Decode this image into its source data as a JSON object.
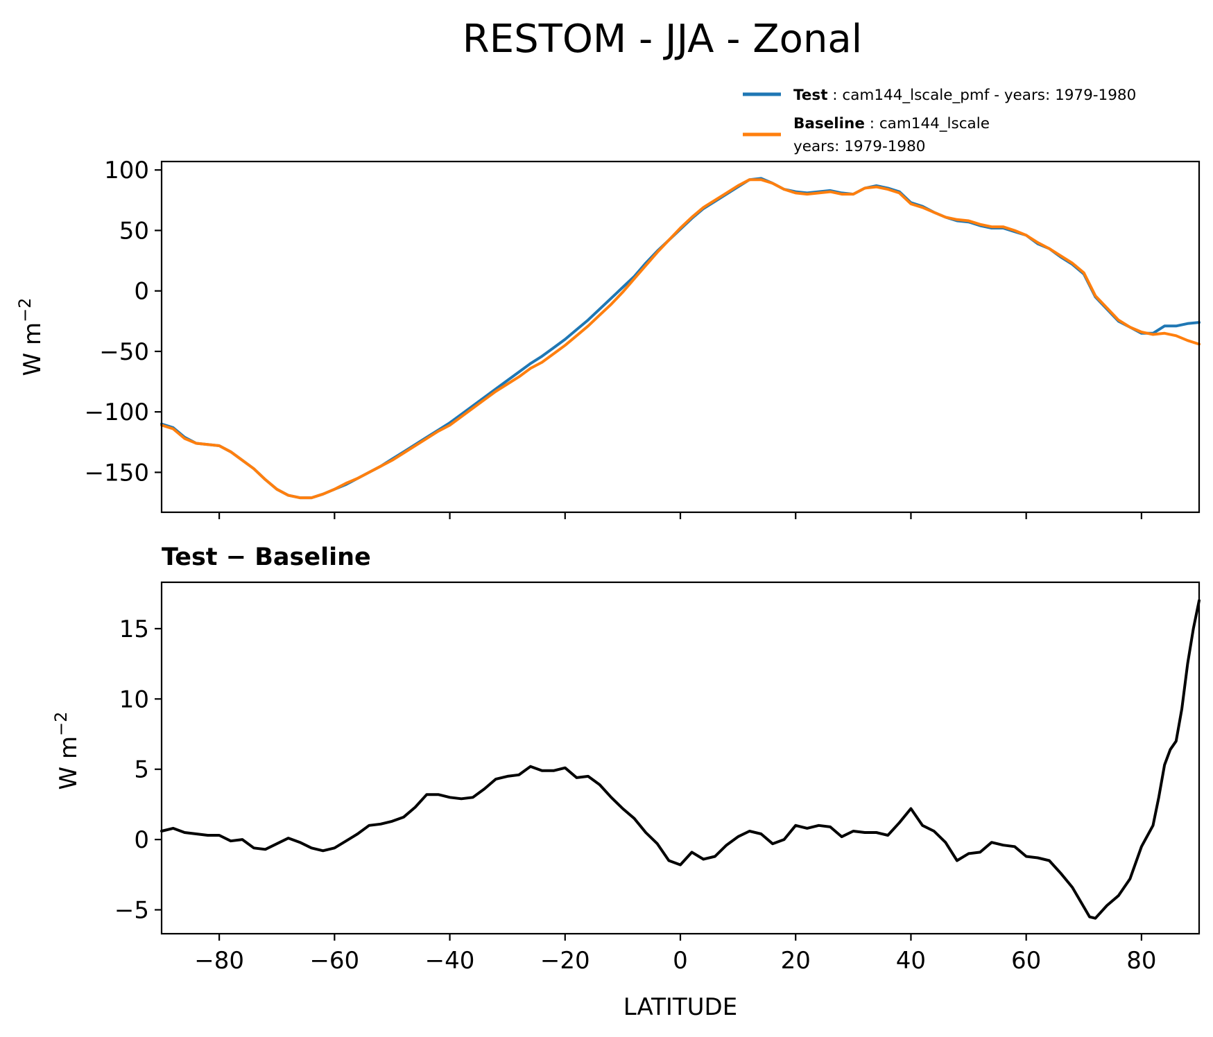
{
  "chart_data": [
    {
      "type": "line",
      "title": "RESTOM - JJA - Zonal",
      "xlabel": "",
      "ylabel_base": "W m",
      "ylabel_exp": "−2",
      "xlim": [
        -90,
        90
      ],
      "ylim": [
        -183,
        107
      ],
      "xticks": [
        -80,
        -60,
        -40,
        -20,
        0,
        20,
        40,
        60,
        80
      ],
      "yticks": [
        -150,
        -100,
        -50,
        0,
        50,
        100
      ],
      "ytick_labels": [
        "−150",
        "−100",
        "−50",
        "0",
        "50",
        "100"
      ],
      "legend": {
        "position": "above-right",
        "entries": [
          {
            "bold": "Test",
            "sep": " : ",
            "text": "cam144_lscale_pmf - years: 1979-1980",
            "line2": ""
          },
          {
            "bold": "Baseline",
            "sep": " : ",
            "text": "cam144_lscale",
            "line2": "years: 1979-1980"
          }
        ]
      },
      "series": [
        {
          "name": "Test",
          "color": "#1f77b4",
          "x": [
            -90,
            -88,
            -86,
            -84,
            -82,
            -80,
            -78,
            -76,
            -74,
            -72,
            -70,
            -68,
            -66,
            -64,
            -62,
            -60,
            -58,
            -56,
            -54,
            -52,
            -50,
            -48,
            -46,
            -44,
            -42,
            -40,
            -38,
            -36,
            -34,
            -32,
            -30,
            -28,
            -26,
            -24,
            -22,
            -20,
            -18,
            -16,
            -14,
            -12,
            -10,
            -8,
            -6,
            -4,
            -2,
            0,
            2,
            4,
            6,
            8,
            10,
            12,
            14,
            16,
            18,
            20,
            22,
            24,
            26,
            28,
            30,
            32,
            34,
            36,
            38,
            40,
            42,
            44,
            46,
            48,
            50,
            52,
            54,
            56,
            58,
            60,
            62,
            64,
            66,
            68,
            70,
            72,
            74,
            76,
            78,
            80,
            82,
            84,
            86,
            88,
            90
          ],
          "y": [
            -110,
            -113,
            -121,
            -126,
            -127,
            -128,
            -133,
            -140,
            -147,
            -156,
            -164,
            -169,
            -171,
            -171,
            -168,
            -164,
            -160,
            -155,
            -150,
            -145,
            -139,
            -133,
            -127,
            -121,
            -115,
            -109,
            -102,
            -95,
            -88,
            -81,
            -74,
            -67,
            -60,
            -54,
            -47,
            -40,
            -32,
            -24,
            -15,
            -6,
            3,
            12,
            23,
            33,
            42,
            51,
            60,
            68,
            74,
            80,
            86,
            92,
            93,
            89,
            84,
            82,
            81,
            82,
            83,
            81,
            80,
            85,
            87,
            85,
            82,
            73,
            70,
            65,
            61,
            58,
            57,
            54,
            52,
            52,
            49,
            46,
            39,
            35,
            28,
            22,
            14,
            -5,
            -15,
            -25,
            -30,
            -35,
            -35,
            -29,
            -29,
            -27,
            -26
          ]
        },
        {
          "name": "Baseline",
          "color": "#ff7f0e",
          "x": [
            -90,
            -88,
            -86,
            -84,
            -82,
            -80,
            -78,
            -76,
            -74,
            -72,
            -70,
            -68,
            -66,
            -64,
            -62,
            -60,
            -58,
            -56,
            -54,
            -52,
            -50,
            -48,
            -46,
            -44,
            -42,
            -40,
            -38,
            -36,
            -34,
            -32,
            -30,
            -28,
            -26,
            -24,
            -22,
            -20,
            -18,
            -16,
            -14,
            -12,
            -10,
            -8,
            -6,
            -4,
            -2,
            0,
            2,
            4,
            6,
            8,
            10,
            12,
            14,
            16,
            18,
            20,
            22,
            24,
            26,
            28,
            30,
            32,
            34,
            36,
            38,
            40,
            42,
            44,
            46,
            48,
            50,
            52,
            54,
            56,
            58,
            60,
            62,
            64,
            66,
            68,
            70,
            72,
            74,
            76,
            78,
            80,
            82,
            84,
            86,
            88,
            90
          ],
          "y": [
            -111,
            -114,
            -122,
            -126,
            -127,
            -128,
            -133,
            -140,
            -147,
            -156,
            -164,
            -169,
            -171,
            -171,
            -168,
            -164,
            -159,
            -155,
            -150,
            -145,
            -140,
            -134,
            -128,
            -122,
            -116,
            -111,
            -104,
            -97,
            -90,
            -83,
            -77,
            -71,
            -64,
            -59,
            -52,
            -45,
            -37,
            -29,
            -20,
            -11,
            -1,
            10,
            21,
            32,
            42,
            52,
            61,
            69,
            75,
            81,
            87,
            92,
            92,
            89,
            84,
            81,
            80,
            81,
            82,
            80,
            80,
            85,
            86,
            84,
            81,
            72,
            69,
            65,
            61,
            59,
            58,
            55,
            53,
            53,
            50,
            46,
            40,
            35,
            29,
            23,
            15,
            -4,
            -14,
            -24,
            -30,
            -34,
            -36,
            -35,
            -37,
            -41,
            -44
          ]
        }
      ]
    },
    {
      "type": "line",
      "title": "Test − Baseline",
      "xlabel": "LATITUDE",
      "ylabel_base": "W m",
      "ylabel_exp": "−2",
      "xlim": [
        -90,
        90
      ],
      "ylim": [
        -6.7,
        18.3
      ],
      "xticks": [
        -80,
        -60,
        -40,
        -20,
        0,
        20,
        40,
        60,
        80
      ],
      "xtick_labels": [
        "−80",
        "−60",
        "−40",
        "−20",
        "0",
        "20",
        "40",
        "60",
        "80"
      ],
      "yticks": [
        -5,
        0,
        5,
        10,
        15
      ],
      "ytick_labels": [
        "−5",
        "0",
        "5",
        "10",
        "15"
      ],
      "series": [
        {
          "name": "Test − Baseline",
          "color": "#000000",
          "x": [
            -90,
            -88,
            -86,
            -84,
            -82,
            -80,
            -78,
            -76,
            -74,
            -72,
            -70,
            -68,
            -66,
            -64,
            -62,
            -60,
            -58,
            -56,
            -54,
            -52,
            -50,
            -48,
            -46,
            -44,
            -42,
            -40,
            -38,
            -36,
            -34,
            -32,
            -30,
            -28,
            -26,
            -24,
            -22,
            -20,
            -18,
            -16,
            -14,
            -12,
            -10,
            -8,
            -6,
            -4,
            -2,
            0,
            2,
            4,
            6,
            8,
            10,
            12,
            14,
            16,
            18,
            20,
            22,
            24,
            26,
            28,
            30,
            32,
            34,
            36,
            38,
            40,
            42,
            44,
            46,
            48,
            50,
            52,
            54,
            56,
            58,
            60,
            62,
            64,
            66,
            68,
            70,
            71,
            72,
            74,
            76,
            78,
            80,
            82,
            83,
            84,
            85,
            86,
            87,
            88,
            89,
            90
          ],
          "y": [
            0.6,
            0.8,
            0.5,
            0.4,
            0.3,
            0.3,
            -0.1,
            0.0,
            -0.6,
            -0.7,
            -0.3,
            0.1,
            -0.2,
            -0.6,
            -0.8,
            -0.6,
            -0.1,
            0.4,
            1.0,
            1.1,
            1.3,
            1.6,
            2.3,
            3.2,
            3.2,
            3.0,
            2.9,
            3.0,
            3.6,
            4.3,
            4.5,
            4.6,
            5.2,
            4.9,
            4.9,
            5.1,
            4.4,
            4.5,
            3.9,
            3.0,
            2.2,
            1.5,
            0.5,
            -0.3,
            -1.5,
            -1.8,
            -0.9,
            -1.4,
            -1.2,
            -0.4,
            0.2,
            0.6,
            0.4,
            -0.3,
            0.0,
            1.0,
            0.8,
            1.0,
            0.9,
            0.2,
            0.6,
            0.5,
            0.5,
            0.3,
            1.2,
            2.2,
            1.0,
            0.6,
            -0.2,
            -1.5,
            -1.0,
            -0.9,
            -0.2,
            -0.4,
            -0.5,
            -1.2,
            -1.3,
            -1.5,
            -2.4,
            -3.4,
            -4.8,
            -5.5,
            -5.6,
            -4.7,
            -4.0,
            -2.8,
            -0.5,
            1.0,
            3.0,
            5.3,
            6.4,
            7.0,
            9.3,
            12.5,
            15.0,
            17.0
          ]
        }
      ]
    }
  ]
}
